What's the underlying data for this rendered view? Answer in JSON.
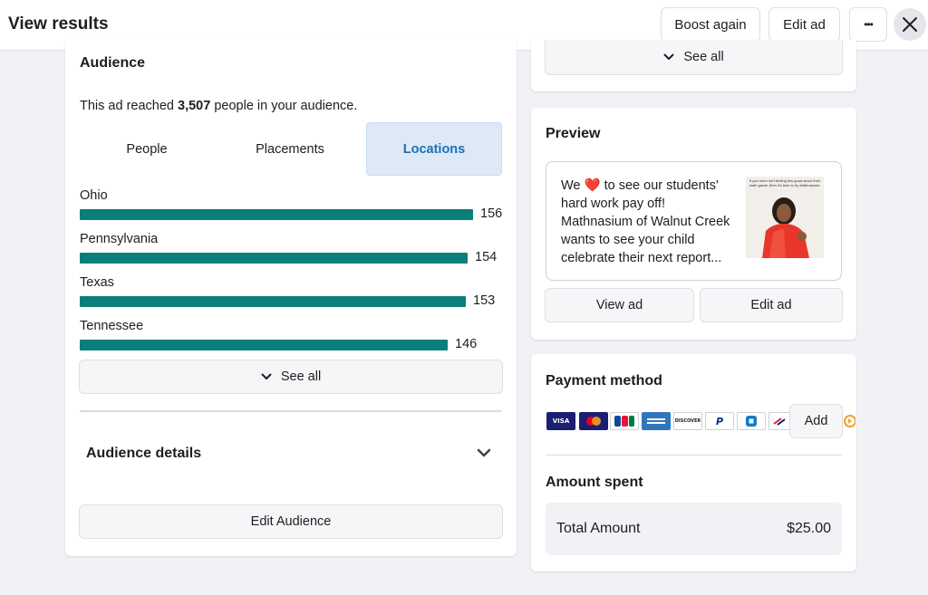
{
  "header": {
    "title": "View results",
    "boost_again": "Boost again",
    "edit_ad": "Edit ad",
    "more": "•••"
  },
  "audience": {
    "title": "Audience",
    "reach_prefix": "This ad reached ",
    "reach_count": "3,507",
    "reach_suffix": " people in your audience.",
    "tabs": [
      "People",
      "Placements",
      "Locations"
    ],
    "active_tab": "Locations",
    "see_all": "See all",
    "details_title": "Audience details",
    "edit_audience": "Edit Audience"
  },
  "chart_data": {
    "type": "bar",
    "categories": [
      "Ohio",
      "Pennsylvania",
      "Texas",
      "Tennessee"
    ],
    "values": [
      156,
      154,
      153,
      146
    ],
    "color": "#0a7e7a"
  },
  "top_right": {
    "see_all": "See all"
  },
  "preview": {
    "title": "Preview",
    "text_line1_pre": "We ",
    "heart": "❤️",
    "text_line1_post": " to see our students'",
    "text_rest": [
      "hard work pay off!",
      "Mathnasium of Walnut Creek",
      "wants to see your child",
      "celebrate their next report..."
    ],
    "image_caption": "If your teen isn't feeling this good about their math grade, then it's time to try Mathnasium.",
    "view_ad": "View ad",
    "edit_ad": "Edit ad"
  },
  "payment": {
    "title": "Payment method",
    "icons": [
      "visa-icon",
      "mastercard-icon",
      "jcb-icon",
      "amex-icon",
      "discover-icon",
      "paypal-icon",
      "chase-icon",
      "bank-of-america-icon"
    ],
    "visa_label": "VISA",
    "discover_label": "DISCOVER",
    "paypal_label": "P",
    "add": "Add",
    "amount_title": "Amount spent",
    "total_label": "Total Amount",
    "total_value": "$25.00"
  },
  "colors": {
    "accent": "#1d6fb8",
    "bar": "#0a7e7a",
    "tab_active_bg": "#dde9f5"
  }
}
